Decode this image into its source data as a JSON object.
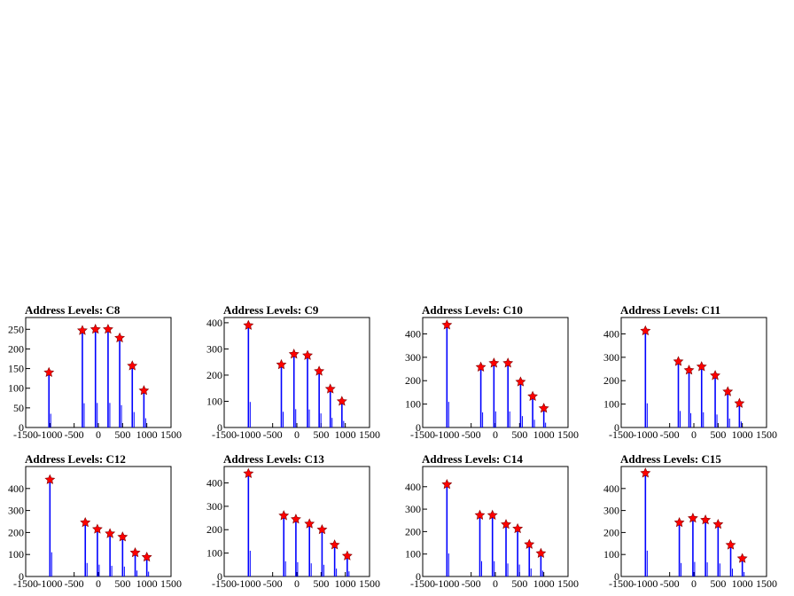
{
  "colors": {
    "hist": "#0000ff",
    "marker": "#ff0000",
    "frame": "#000000"
  },
  "chart_data": [
    {
      "type": "bar",
      "title": "Address Levels: C8",
      "xlim": [
        -1500,
        1500
      ],
      "ylim": [
        0,
        280
      ],
      "xticks": [
        -1500,
        -1000,
        -500,
        0,
        500,
        1000,
        1500
      ],
      "xtick_labels": [
        "-1500",
        "-1000",
        "-500",
        "0",
        "500",
        "1000",
        "1500"
      ],
      "yticks": [
        0,
        50,
        100,
        150,
        200,
        250
      ],
      "peaks": [
        [
          -1020,
          140
        ],
        [
          -330,
          247
        ],
        [
          -60,
          250
        ],
        [
          200,
          250
        ],
        [
          440,
          228
        ],
        [
          700,
          157
        ],
        [
          940,
          94
        ]
      ]
    },
    {
      "type": "bar",
      "title": "Address Levels: C9",
      "xlim": [
        -1500,
        1500
      ],
      "ylim": [
        0,
        420
      ],
      "xticks": [
        -1500,
        -1000,
        -500,
        0,
        500,
        1000,
        1500
      ],
      "xtick_labels": [
        "-1500",
        "-1000",
        "-500",
        "0",
        "500",
        "1000",
        "1500"
      ],
      "yticks": [
        0,
        100,
        200,
        300,
        400
      ],
      "peaks": [
        [
          -1000,
          390
        ],
        [
          -320,
          240
        ],
        [
          -60,
          280
        ],
        [
          220,
          275
        ],
        [
          460,
          215
        ],
        [
          690,
          147
        ],
        [
          930,
          100
        ]
      ]
    },
    {
      "type": "bar",
      "title": "Address Levels: C10",
      "xlim": [
        -1500,
        1500
      ],
      "ylim": [
        0,
        470
      ],
      "xticks": [
        -1500,
        -1000,
        -500,
        0,
        500,
        1000,
        1500
      ],
      "xtick_labels": [
        "-1500",
        "-1000",
        "-500",
        "0",
        "500",
        "1000",
        "1500"
      ],
      "yticks": [
        0,
        100,
        200,
        300,
        400
      ],
      "peaks": [
        [
          -1000,
          438
        ],
        [
          -300,
          258
        ],
        [
          -30,
          275
        ],
        [
          260,
          275
        ],
        [
          520,
          195
        ],
        [
          770,
          133
        ],
        [
          1000,
          82
        ]
      ]
    },
    {
      "type": "bar",
      "title": "Address Levels: C11",
      "xlim": [
        -1500,
        1500
      ],
      "ylim": [
        0,
        470
      ],
      "xticks": [
        -1500,
        -1000,
        -500,
        0,
        500,
        1000,
        1500
      ],
      "xtick_labels": [
        "-1500",
        "-1000",
        "-500",
        "0",
        "500",
        "1000",
        "1500"
      ],
      "yticks": [
        0,
        100,
        200,
        300,
        400
      ],
      "peaks": [
        [
          -1000,
          413
        ],
        [
          -320,
          282
        ],
        [
          -100,
          245
        ],
        [
          160,
          260
        ],
        [
          440,
          222
        ],
        [
          700,
          153
        ],
        [
          940,
          103
        ]
      ]
    },
    {
      "type": "bar",
      "title": "Address Levels: C12",
      "xlim": [
        -1500,
        1500
      ],
      "ylim": [
        0,
        500
      ],
      "xticks": [
        -1500,
        -1000,
        -500,
        0,
        500,
        1000,
        1500
      ],
      "xtick_labels": [
        "-1500",
        "-1000",
        "-500",
        "0",
        "500",
        "1000",
        "1500"
      ],
      "yticks": [
        0,
        100,
        200,
        300,
        400
      ],
      "peaks": [
        [
          -1000,
          440
        ],
        [
          -270,
          245
        ],
        [
          -20,
          215
        ],
        [
          240,
          195
        ],
        [
          500,
          180
        ],
        [
          760,
          108
        ],
        [
          1000,
          88
        ]
      ]
    },
    {
      "type": "bar",
      "title": "Address Levels: C13",
      "xlim": [
        -1500,
        1500
      ],
      "ylim": [
        0,
        470
      ],
      "xticks": [
        -1500,
        -1000,
        -500,
        0,
        500,
        1000,
        1500
      ],
      "xtick_labels": [
        "-1500",
        "-1000",
        "-500",
        "0",
        "500",
        "1000",
        "1500"
      ],
      "yticks": [
        0,
        100,
        200,
        300,
        400
      ],
      "peaks": [
        [
          -1000,
          440
        ],
        [
          -270,
          260
        ],
        [
          -20,
          245
        ],
        [
          260,
          225
        ],
        [
          520,
          200
        ],
        [
          780,
          135
        ],
        [
          1040,
          88
        ]
      ]
    },
    {
      "type": "bar",
      "title": "Address Levels: C14",
      "xlim": [
        -1500,
        1500
      ],
      "ylim": [
        0,
        490
      ],
      "xticks": [
        -1500,
        -1000,
        -500,
        0,
        500,
        1000,
        1500
      ],
      "xtick_labels": [
        "-1500",
        "-1000",
        "-500",
        "0",
        "500",
        "1000",
        "1500"
      ],
      "yticks": [
        0,
        100,
        200,
        300,
        400
      ],
      "peaks": [
        [
          -1000,
          410
        ],
        [
          -320,
          273
        ],
        [
          -60,
          273
        ],
        [
          220,
          232
        ],
        [
          460,
          213
        ],
        [
          700,
          143
        ],
        [
          940,
          103
        ]
      ]
    },
    {
      "type": "bar",
      "title": "Address Levels: C15",
      "xlim": [
        -1500,
        1500
      ],
      "ylim": [
        0,
        500
      ],
      "xticks": [
        -1500,
        -1000,
        -500,
        0,
        500,
        1000,
        1500
      ],
      "xtick_labels": [
        "-1500",
        "-1000",
        "-500",
        "0",
        "500",
        "1000",
        "1500"
      ],
      "yticks": [
        0,
        100,
        200,
        300,
        400
      ],
      "peaks": [
        [
          -1000,
          470
        ],
        [
          -300,
          245
        ],
        [
          -20,
          265
        ],
        [
          240,
          257
        ],
        [
          500,
          237
        ],
        [
          760,
          143
        ],
        [
          1000,
          82
        ]
      ]
    }
  ]
}
